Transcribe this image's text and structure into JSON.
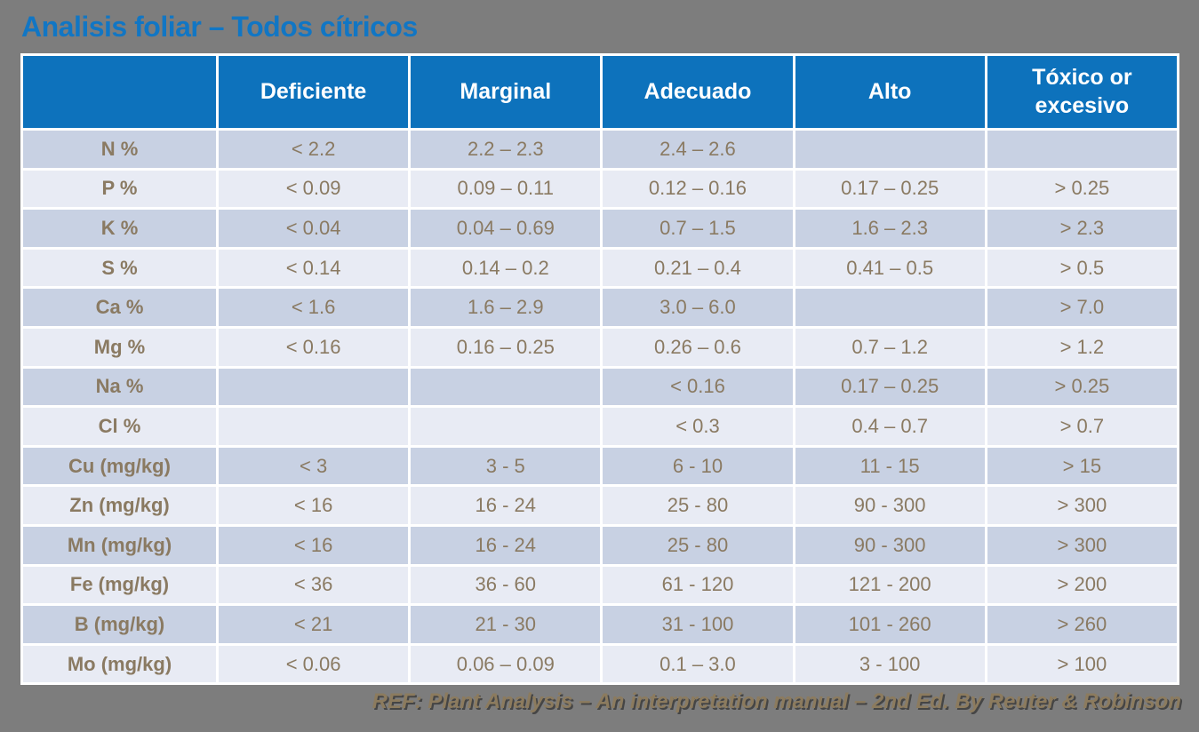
{
  "page": {
    "title": "Analisis foliar – Todos cítricos",
    "footer": "REF: Plant Analysis – An interpretation manual – 2nd Ed. By Reuter & Robinson"
  },
  "colors": {
    "background": "#7d7d7d",
    "header_blue": "#0d72bc",
    "title_blue": "#1176c4",
    "band_dark": "#c8d1e3",
    "band_light": "#e8ebf4",
    "cell_text": "#8a7a62",
    "footer_text": "#8c7b5e",
    "grid_line": "#ffffff"
  },
  "table": {
    "headers": [
      "",
      "Deficiente",
      "Marginal",
      "Adecuado",
      "Alto",
      "Tóxico or excesivo"
    ],
    "rows": [
      {
        "label": "N %",
        "values": [
          "< 2.2",
          "2.2 – 2.3",
          "2.4 – 2.6",
          "",
          ""
        ]
      },
      {
        "label": "P %",
        "values": [
          "< 0.09",
          "0.09 – 0.11",
          "0.12 – 0.16",
          "0.17 – 0.25",
          "> 0.25"
        ]
      },
      {
        "label": "K %",
        "values": [
          "< 0.04",
          "0.04 – 0.69",
          "0.7 – 1.5",
          "1.6 – 2.3",
          "> 2.3"
        ]
      },
      {
        "label": "S %",
        "values": [
          "< 0.14",
          "0.14 – 0.2",
          "0.21 – 0.4",
          "0.41 – 0.5",
          "> 0.5"
        ]
      },
      {
        "label": "Ca %",
        "values": [
          "< 1.6",
          "1.6 – 2.9",
          "3.0 – 6.0",
          "",
          "> 7.0"
        ]
      },
      {
        "label": "Mg %",
        "values": [
          "< 0.16",
          "0.16 – 0.25",
          "0.26 – 0.6",
          "0.7 – 1.2",
          "> 1.2"
        ]
      },
      {
        "label": "Na %",
        "values": [
          "",
          "",
          "< 0.16",
          "0.17 – 0.25",
          "> 0.25"
        ]
      },
      {
        "label": "Cl %",
        "values": [
          "",
          "",
          "< 0.3",
          "0.4 – 0.7",
          "> 0.7"
        ]
      },
      {
        "label": "Cu (mg/kg)",
        "values": [
          "< 3",
          "3 - 5",
          "6 - 10",
          "11 - 15",
          "> 15"
        ]
      },
      {
        "label": "Zn (mg/kg)",
        "values": [
          "< 16",
          "16 - 24",
          "25 - 80",
          "90 - 300",
          "> 300"
        ]
      },
      {
        "label": "Mn (mg/kg)",
        "values": [
          "< 16",
          "16 - 24",
          "25 - 80",
          "90 - 300",
          "> 300"
        ]
      },
      {
        "label": "Fe (mg/kg)",
        "values": [
          "< 36",
          "36 - 60",
          "61 - 120",
          "121 - 200",
          "> 200"
        ]
      },
      {
        "label": "B (mg/kg)",
        "values": [
          "< 21",
          "21 - 30",
          "31 - 100",
          "101 - 260",
          "> 260"
        ]
      },
      {
        "label": "Mo (mg/kg)",
        "values": [
          "< 0.06",
          "0.06 – 0.09",
          "0.1 – 3.0",
          "3 - 100",
          "> 100"
        ]
      }
    ]
  }
}
